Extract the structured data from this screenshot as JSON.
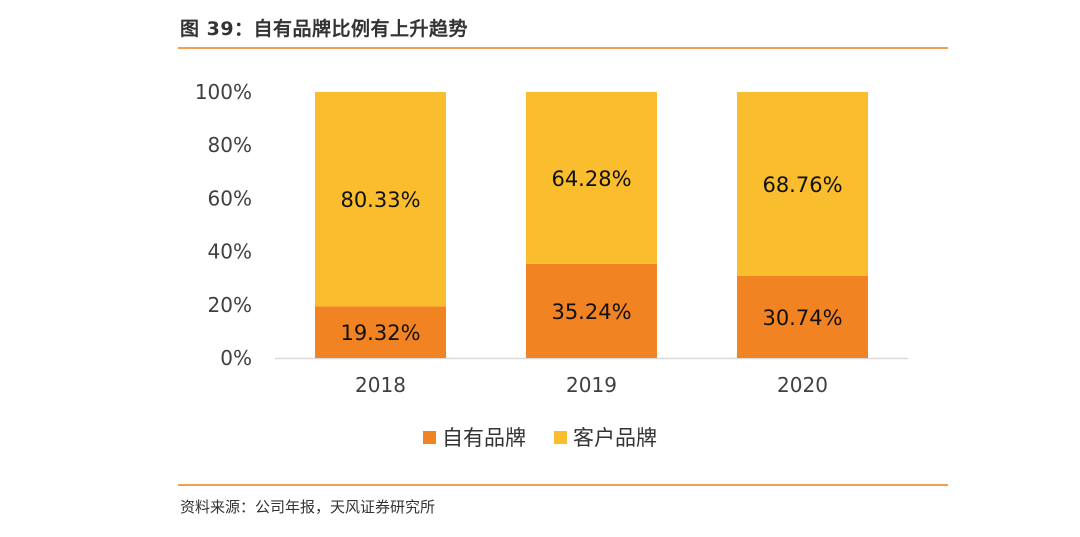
{
  "header": {
    "title": "图 39：自有品牌比例有上升趋势"
  },
  "footer": {
    "source": "资料来源：公司年报，天风证券研究所"
  },
  "colors": {
    "own_brand": "#f28322",
    "client_brand": "#fabd2d",
    "axis": "#d9d9d9",
    "rule": "#f0a050"
  },
  "chart_data": {
    "type": "bar",
    "stacked": true,
    "categories": [
      "2018",
      "2019",
      "2020"
    ],
    "series": [
      {
        "name": "自有品牌",
        "values": [
          19.32,
          35.24,
          30.74
        ],
        "labels": [
          "19.32%",
          "35.24%",
          "30.74%"
        ]
      },
      {
        "name": "客户品牌",
        "values": [
          80.33,
          64.28,
          68.76
        ],
        "labels": [
          "80.33%",
          "64.28%",
          "68.76%"
        ]
      }
    ],
    "ylim": [
      0,
      100
    ],
    "yticks": [
      "0%",
      "20%",
      "40%",
      "60%",
      "80%",
      "100%"
    ],
    "legend_position": "bottom"
  }
}
